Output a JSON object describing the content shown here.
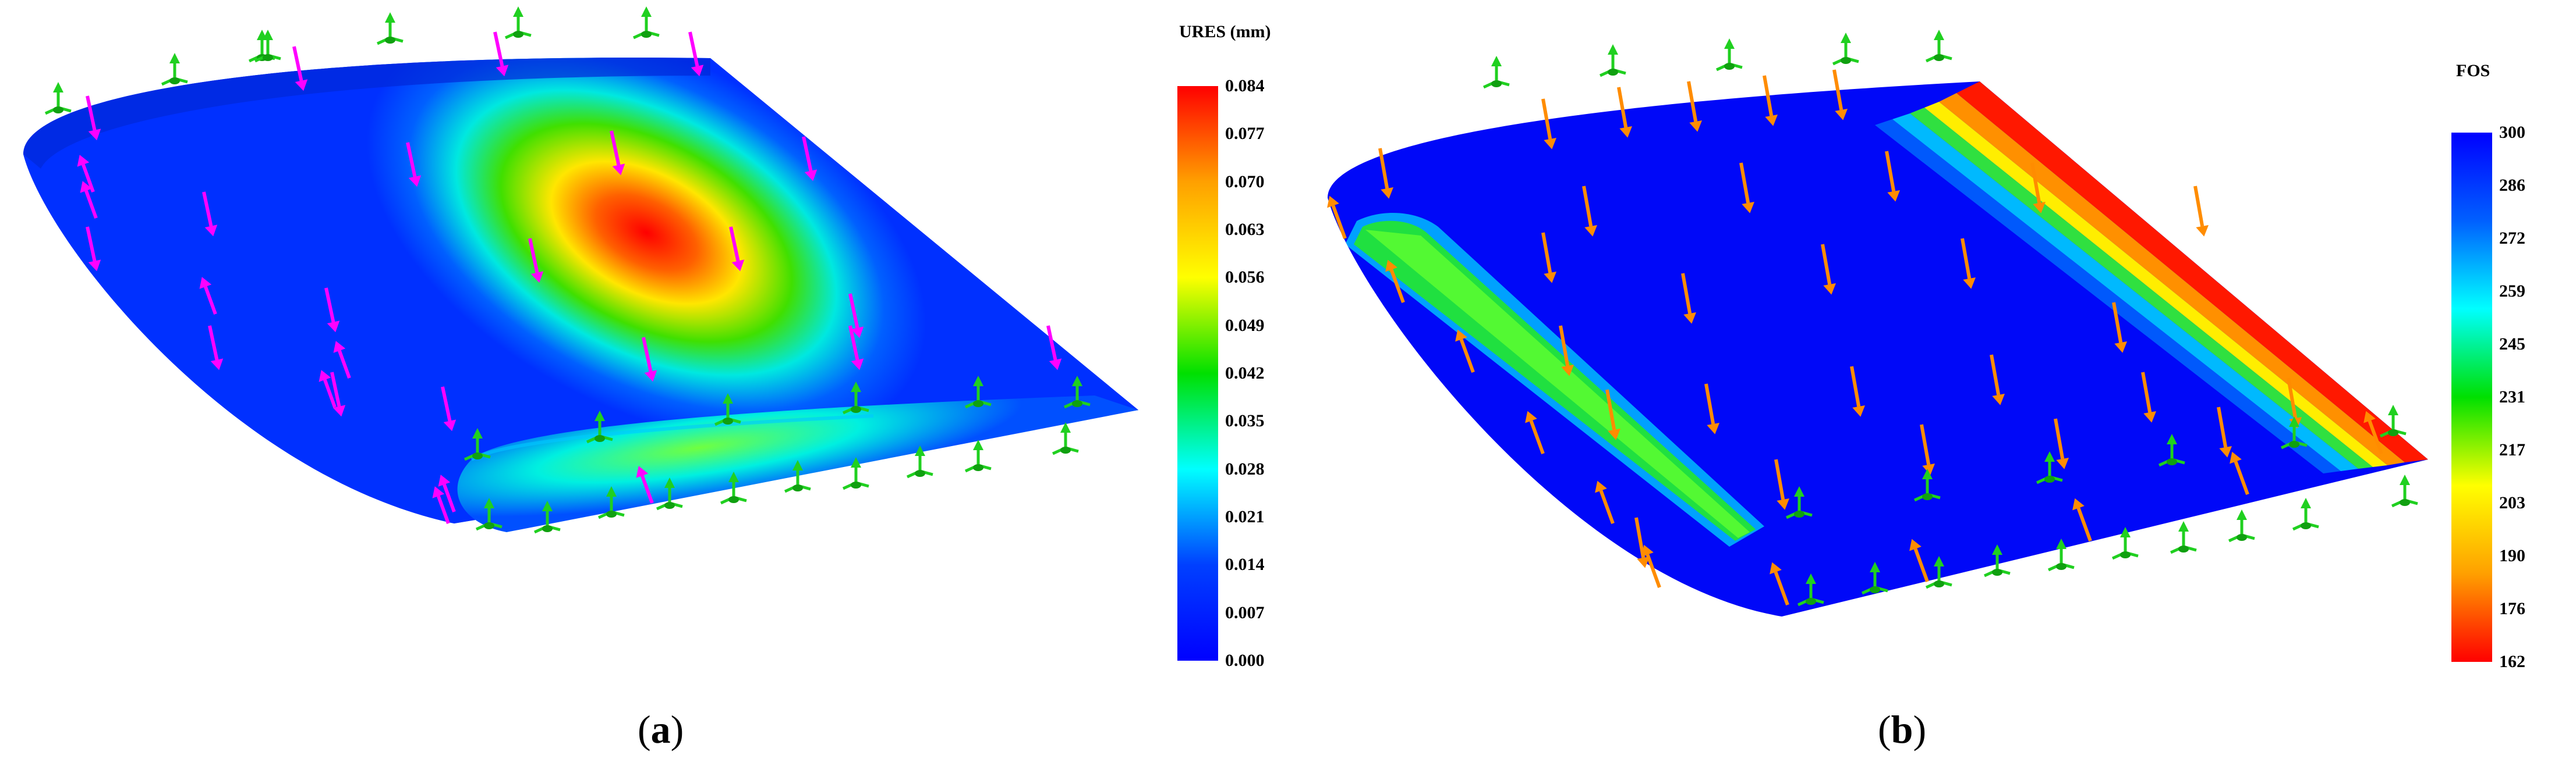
{
  "panels": [
    {
      "id": "a",
      "caption_letter": "a",
      "legend": {
        "title": "URES (mm)",
        "ticks": [
          "0.084",
          "0.077",
          "0.070",
          "0.063",
          "0.056",
          "0.049",
          "0.042",
          "0.035",
          "0.028",
          "0.021",
          "0.014",
          "0.007",
          "0.000"
        ],
        "colors_top_to_bottom": [
          "#ff0000",
          "#ffa000",
          "#ffff00",
          "#00e000",
          "#00ffff",
          "#0040ff",
          "#0000ff"
        ]
      },
      "arrow_color": "#ff00ff",
      "fixture_color": "#20d020"
    },
    {
      "id": "b",
      "caption_letter": "b",
      "legend": {
        "title": "FOS",
        "ticks": [
          "300",
          "286",
          "272",
          "259",
          "245",
          "231",
          "217",
          "203",
          "190",
          "176",
          "162"
        ],
        "colors_top_to_bottom": [
          "#0000ff",
          "#0060ff",
          "#00ffff",
          "#00e000",
          "#ffff00",
          "#ffa000",
          "#ff0000"
        ]
      },
      "arrow_color": "#ff8c00",
      "fixture_color": "#20d020"
    }
  ]
}
